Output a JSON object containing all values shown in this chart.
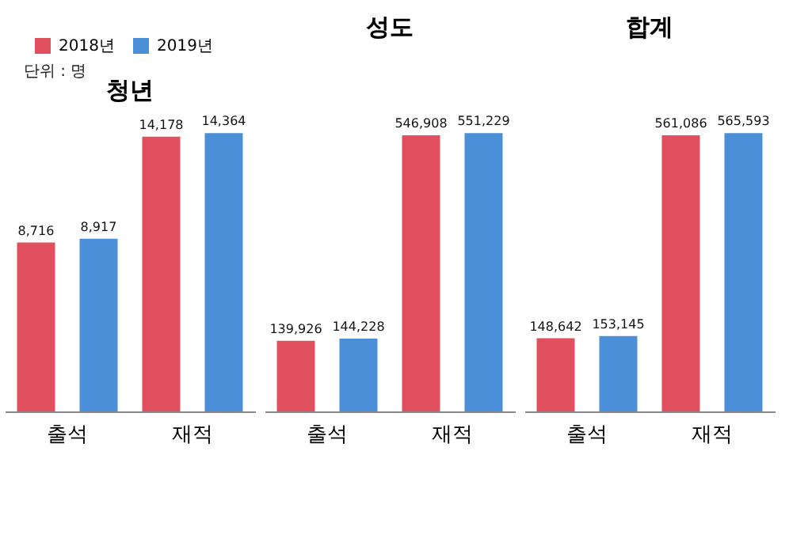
{
  "chart_data": [
    {
      "type": "bar",
      "title": "청년",
      "categories": [
        "출석",
        "재적"
      ],
      "series": [
        {
          "name": "2018년",
          "color": "#e0505e",
          "values": [
            8716,
            14178
          ],
          "value_labels": [
            "8,716",
            "14,178"
          ]
        },
        {
          "name": "2019년",
          "color": "#4a8fd8",
          "values": [
            8917,
            14364
          ],
          "value_labels": [
            "8,917",
            "14,364"
          ]
        }
      ],
      "legend": "top left",
      "annotations": [
        "단위 : 명"
      ]
    },
    {
      "type": "bar",
      "title": "성도",
      "categories": [
        "출석",
        "재적"
      ],
      "series": [
        {
          "color": "#e0505e",
          "values": [
            139926,
            546908
          ],
          "value_labels": [
            "139,926",
            "546,908"
          ]
        },
        {
          "color": "#4a8fd8",
          "values": [
            144228,
            551229
          ],
          "value_labels": [
            "144,228",
            "551,229"
          ]
        }
      ]
    },
    {
      "type": "bar",
      "title": "합계",
      "categories": [
        "출석",
        "재적"
      ],
      "series": [
        {
          "color": "#e0505e",
          "values": [
            148642,
            561086
          ],
          "value_labels": [
            "148,642",
            "561,086"
          ]
        },
        {
          "color": "#4a8fd8",
          "values": [
            153145,
            565593
          ],
          "value_labels": [
            "153,145",
            "565,593"
          ]
        }
      ]
    }
  ]
}
